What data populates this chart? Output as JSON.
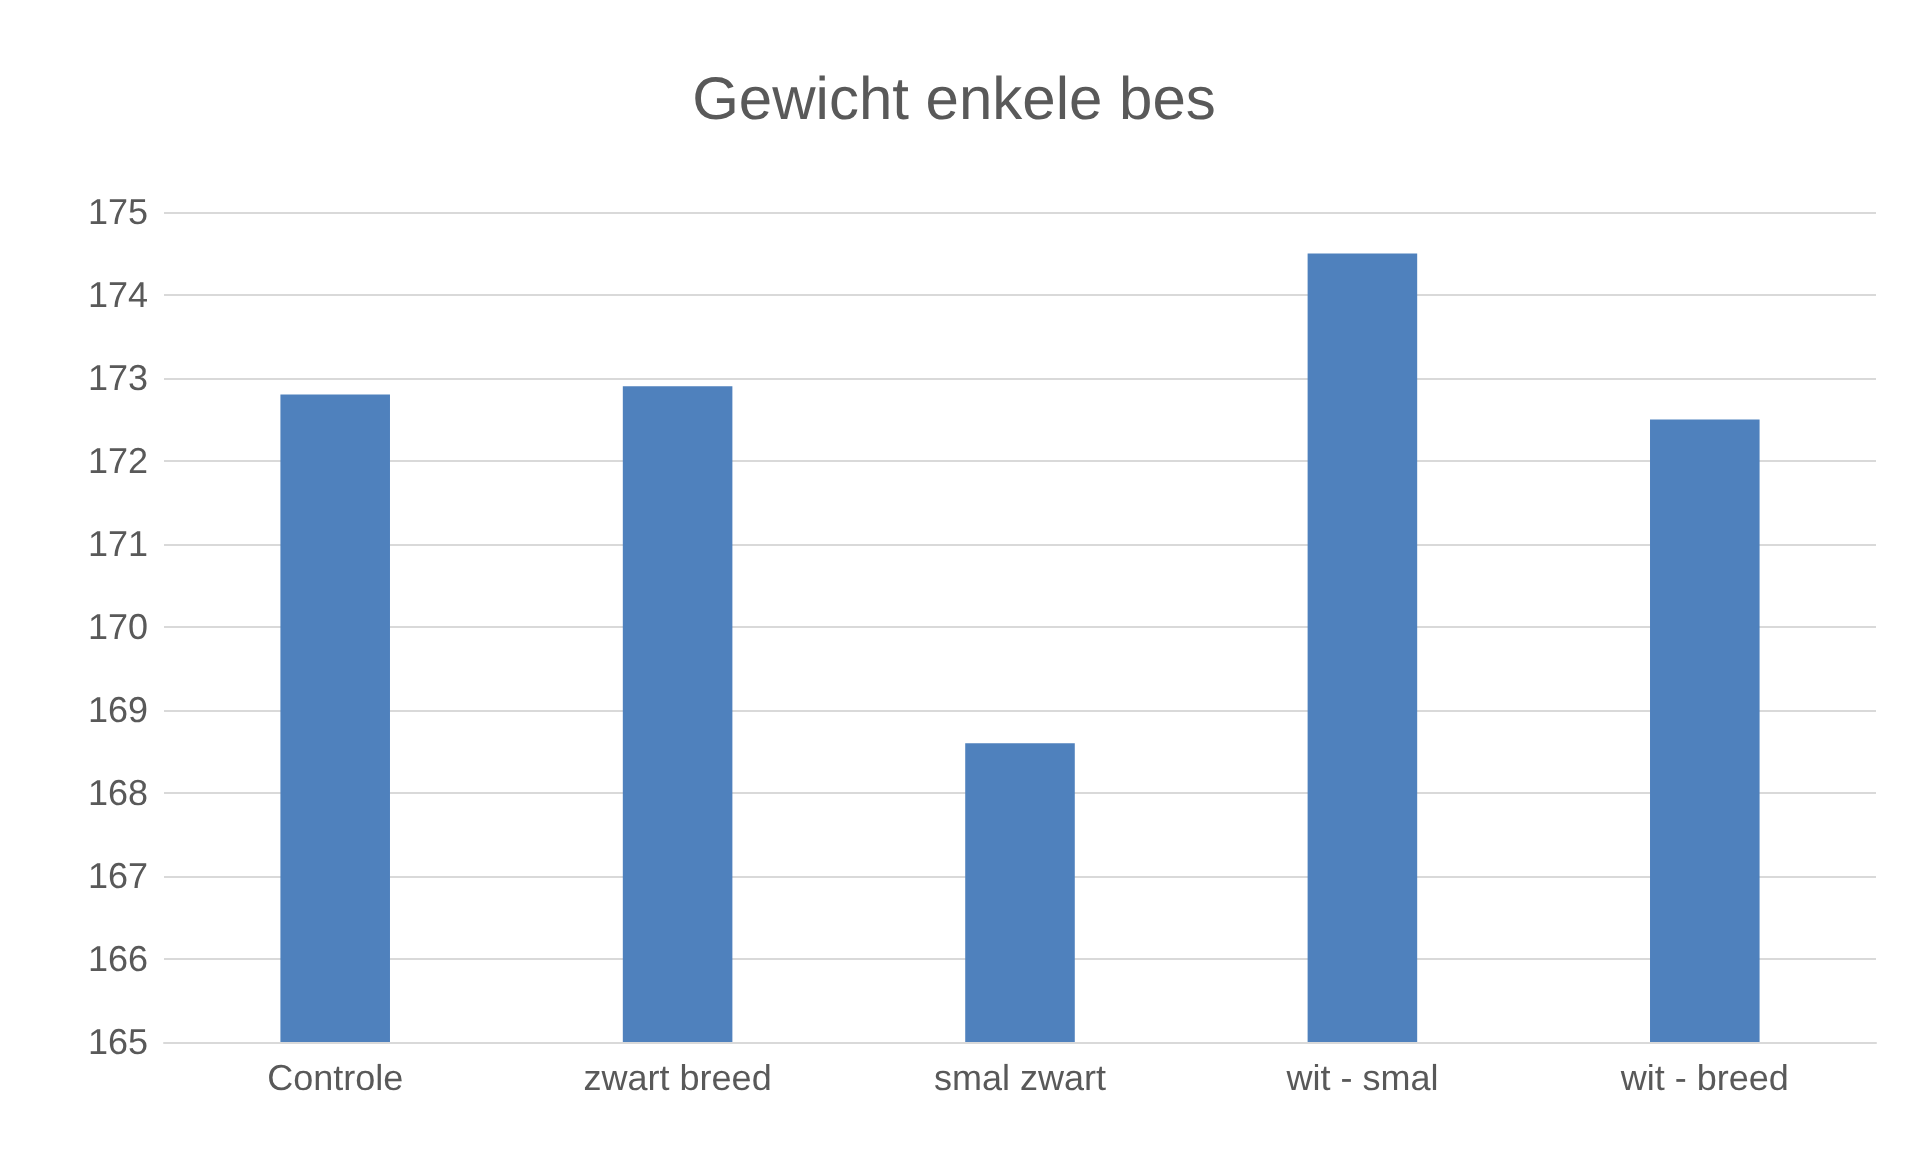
{
  "chart_data": {
    "type": "bar",
    "title": "Gewicht enkele bes",
    "categories": [
      "Controle",
      "zwart breed",
      "smal zwart",
      "wit - smal",
      "wit - breed"
    ],
    "values": [
      172.8,
      172.9,
      168.6,
      174.5,
      172.5
    ],
    "color": "#4f81bd",
    "ylim": [
      165,
      175
    ],
    "yticks": [
      165,
      166,
      167,
      168,
      169,
      170,
      171,
      172,
      173,
      174,
      175
    ],
    "grid": "y"
  }
}
